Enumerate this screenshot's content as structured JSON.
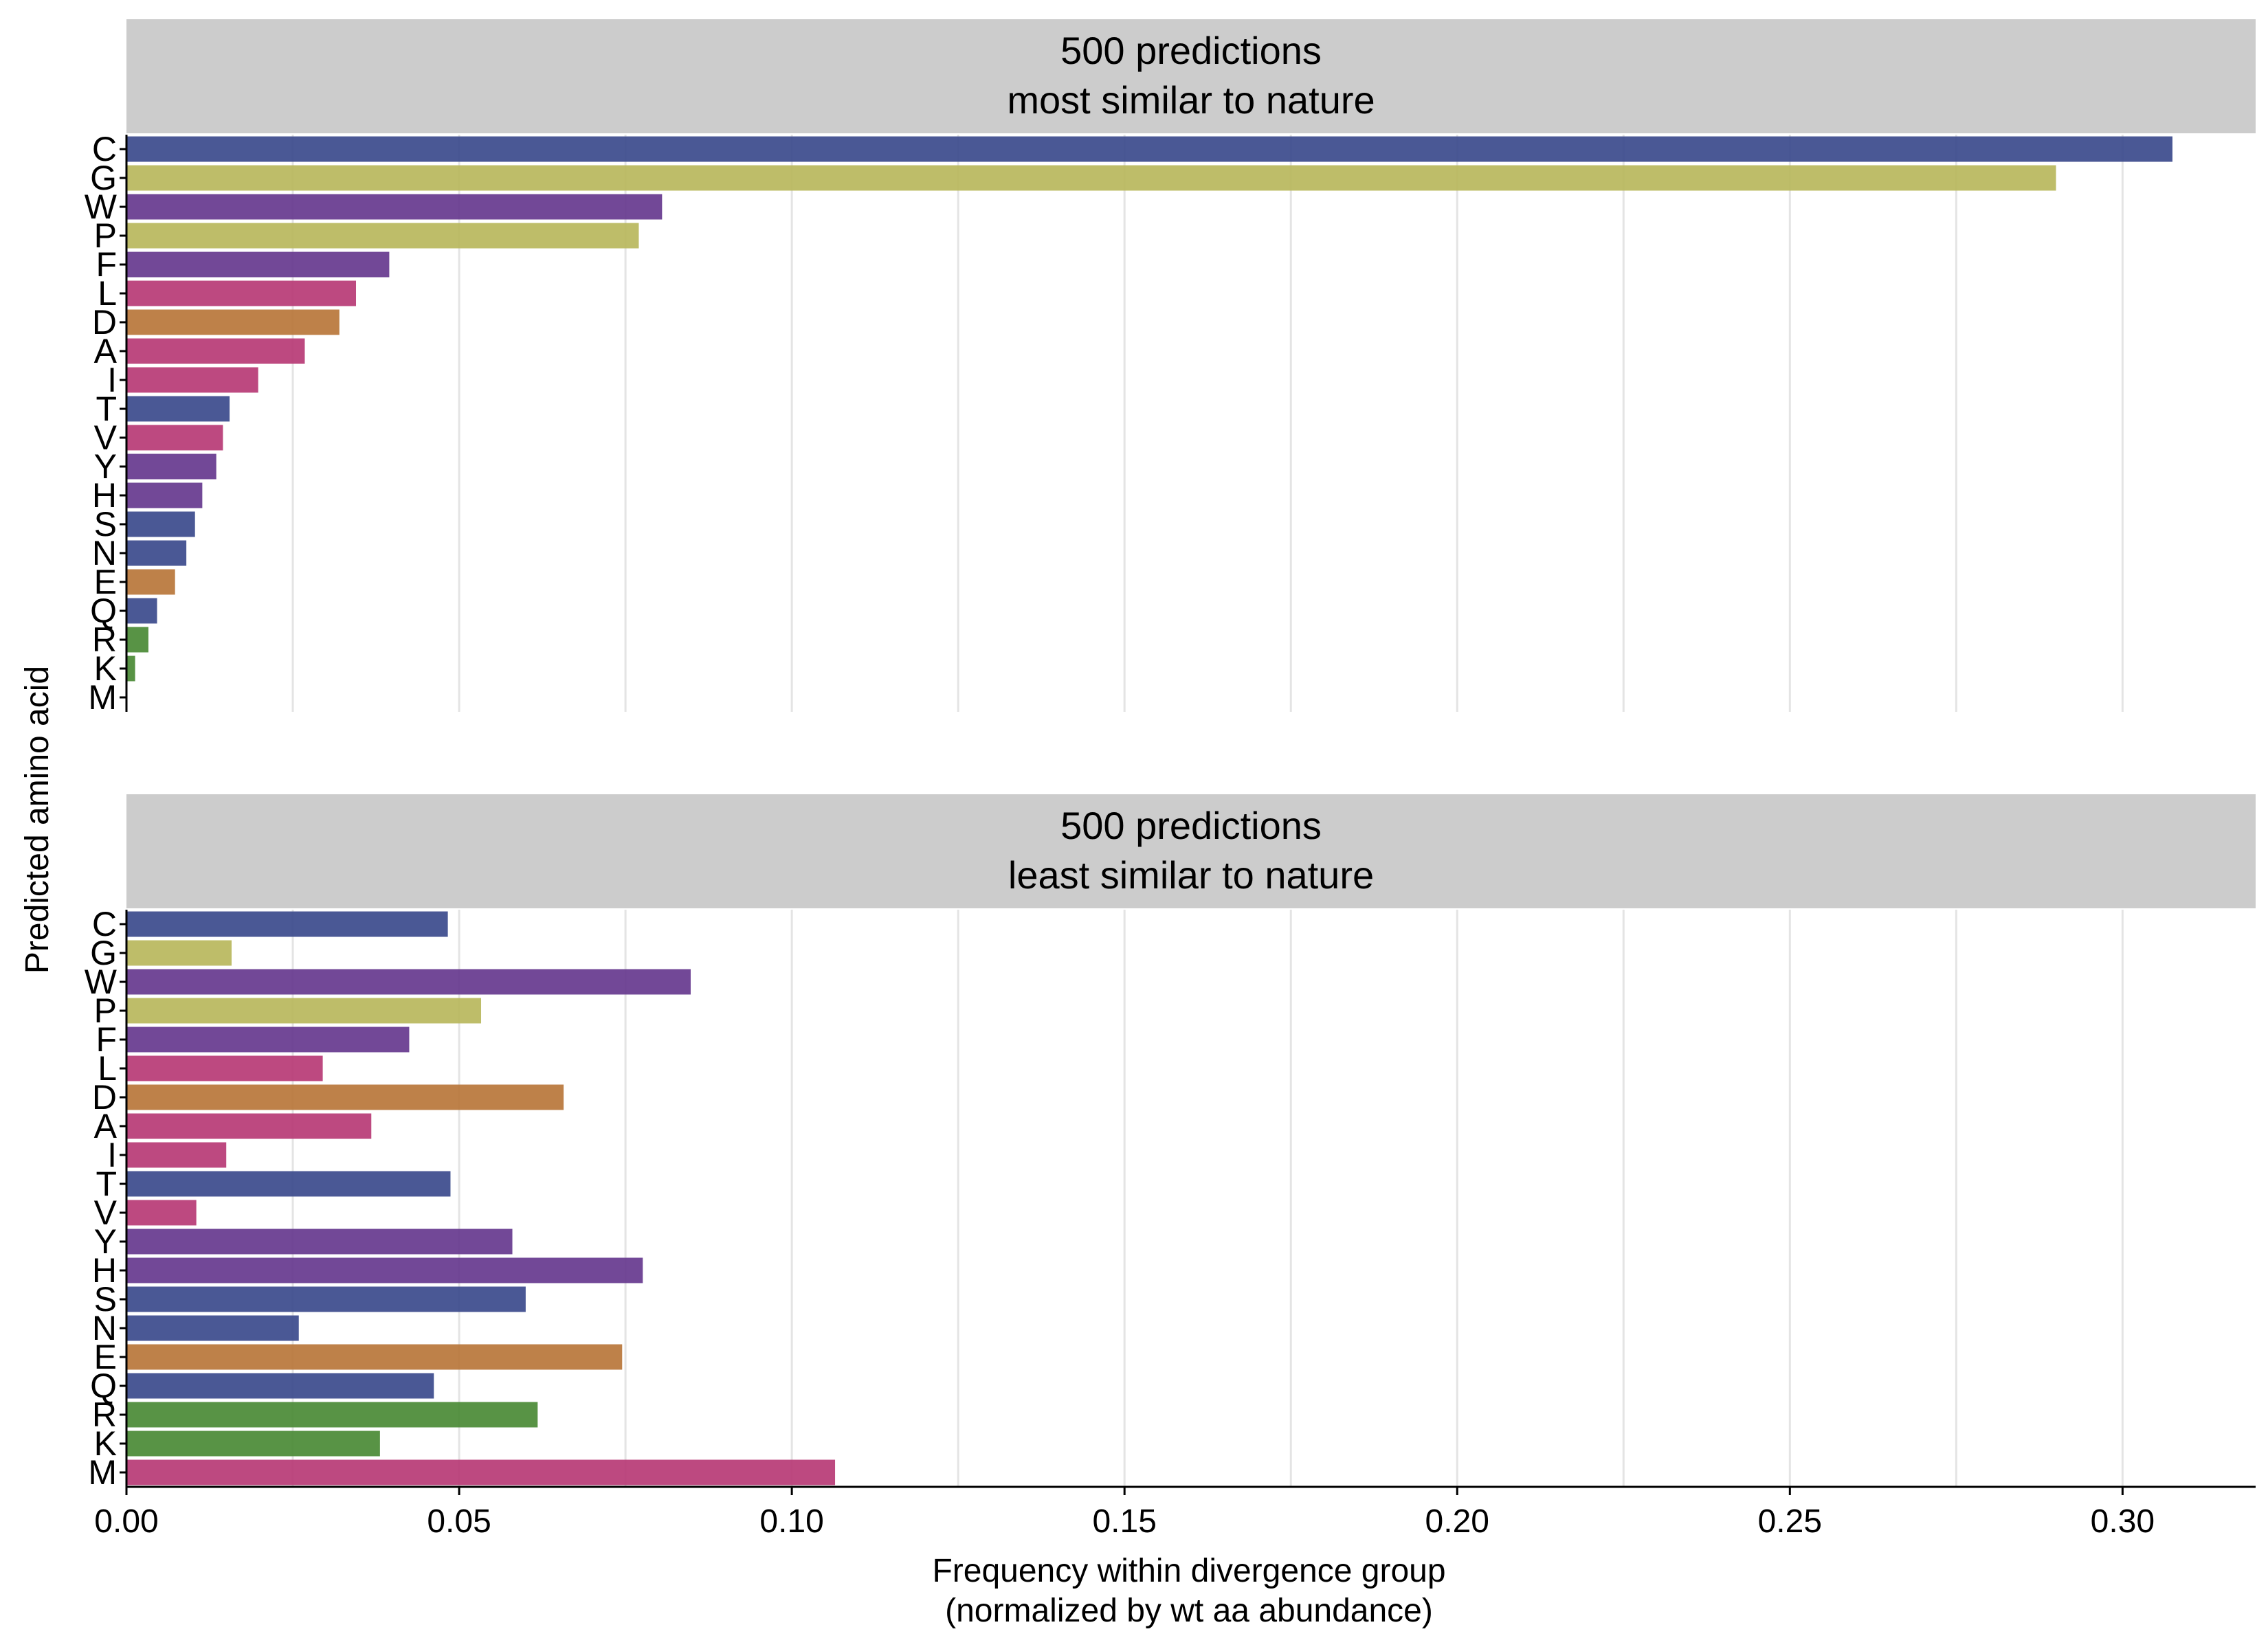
{
  "chart_data": {
    "type": "bar",
    "orientation": "horizontal",
    "ylabel": "Predicted amino acid",
    "xlabel_line1": "Frequency within divergence group",
    "xlabel_line2": "(normalized by wt aa abundance)",
    "xlim": [
      0,
      0.32
    ],
    "xticks": [
      "0.00",
      "0.05",
      "0.10",
      "0.15",
      "0.20",
      "0.25",
      "0.30"
    ],
    "grid": "vertical",
    "categories": [
      "C",
      "G",
      "W",
      "P",
      "F",
      "L",
      "D",
      "A",
      "I",
      "T",
      "V",
      "Y",
      "H",
      "S",
      "N",
      "E",
      "Q",
      "R",
      "K",
      "M"
    ],
    "category_colors": [
      "#3b4a8c",
      "#b8b75c",
      "#66388e",
      "#b8b75c",
      "#66388e",
      "#b73a75",
      "#b8763a",
      "#b73a75",
      "#b73a75",
      "#3b4a8c",
      "#b73a75",
      "#66388e",
      "#66388e",
      "#3b4a8c",
      "#3b4a8c",
      "#b8763a",
      "#3b4a8c",
      "#4a8a35",
      "#4a8a35",
      "#b73a75"
    ],
    "panels": [
      {
        "title_line1": "500 predictions",
        "title_line2": "most similar to nature",
        "values": [
          0.3075,
          0.29,
          0.0805,
          0.077,
          0.0395,
          0.0345,
          0.032,
          0.0268,
          0.0198,
          0.0155,
          0.0145,
          0.0135,
          0.0114,
          0.0103,
          0.009,
          0.0073,
          0.0046,
          0.0033,
          0.0013,
          0.0
        ]
      },
      {
        "title_line1": "500 predictions",
        "title_line2": "least similar to nature",
        "values": [
          0.0483,
          0.0158,
          0.0848,
          0.0533,
          0.0425,
          0.0295,
          0.0657,
          0.0368,
          0.015,
          0.0487,
          0.0105,
          0.058,
          0.0776,
          0.06,
          0.0259,
          0.0745,
          0.0462,
          0.0618,
          0.0381,
          0.1065
        ]
      }
    ]
  }
}
